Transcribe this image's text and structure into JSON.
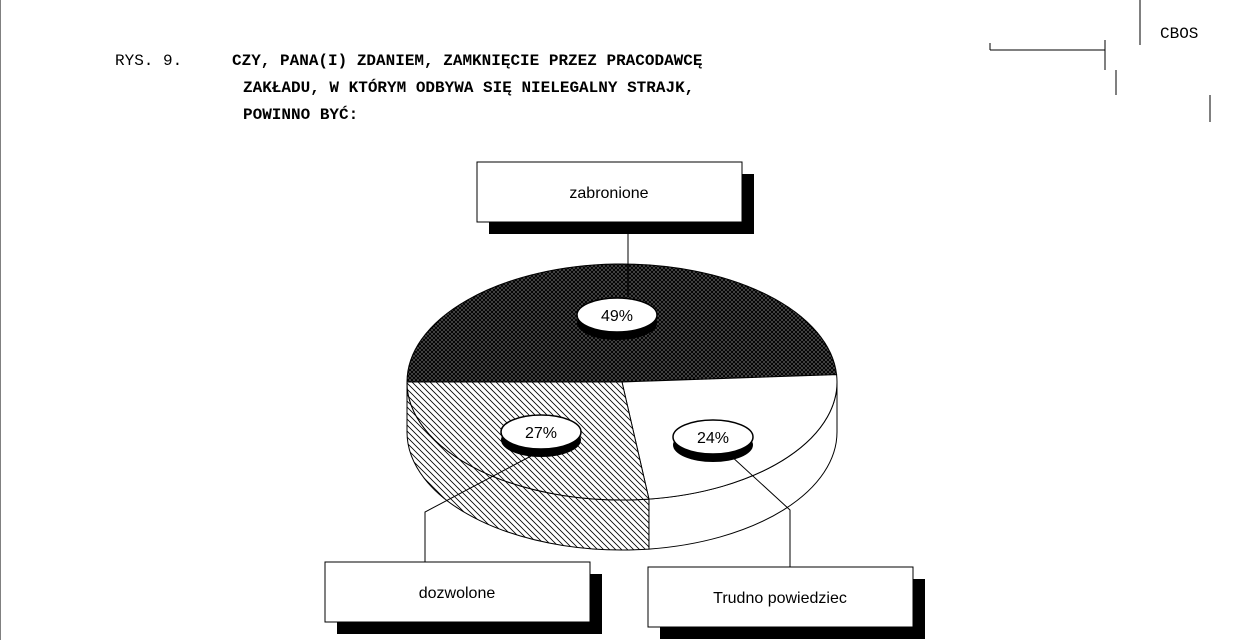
{
  "header": "CBOS",
  "chart_data": {
    "type": "pie",
    "title_prefix": "RYS. 9.",
    "title_lines": [
      "CZY, PANA(I) ZDANIEM, ZAMKNIĘCIE PRZEZ PRACODAWCĘ",
      "ZAKŁADU, W KTÓRYM ODBYWA SIĘ NIELEGALNY STRAJK,",
      "POWINNO BYĆ:"
    ],
    "categories": [
      "zabronione",
      "Trudno powiedziec",
      "dozwolone"
    ],
    "values": [
      49,
      24,
      27
    ],
    "value_labels": [
      "49%",
      "24%",
      "27%"
    ],
    "patterns": [
      "crosshatch",
      "none",
      "diagonal"
    ]
  }
}
